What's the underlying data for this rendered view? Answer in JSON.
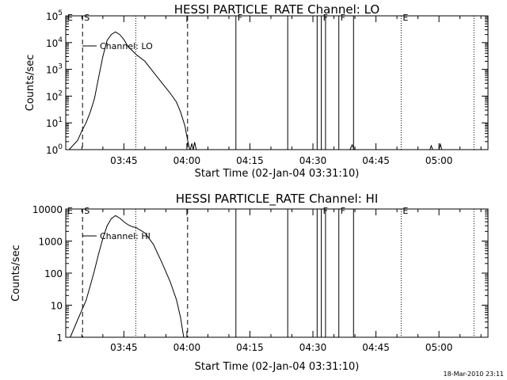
{
  "footer": {
    "timestamp": "18-Mar-2010 23:11"
  },
  "chart_data": [
    {
      "type": "line",
      "title": "HESSI PARTICLE_RATE Channel: LO",
      "xlabel": "Start Time (02-Jan-04 03:31:10)",
      "ylabel": "Counts/sec",
      "yscale": "log",
      "xlim": [
        "03:31:10",
        "05:11:40"
      ],
      "ylim": [
        1,
        100000
      ],
      "x_ticks": [
        "03:45",
        "04:00",
        "04:15",
        "04:30",
        "04:45",
        "05:00"
      ],
      "y_ticks": [
        {
          "value": 1,
          "base": "10",
          "exp": "0"
        },
        {
          "value": 10,
          "base": "10",
          "exp": "1"
        },
        {
          "value": 100,
          "base": "10",
          "exp": "2"
        },
        {
          "value": 1000,
          "base": "10",
          "exp": "3"
        },
        {
          "value": 10000,
          "base": "10",
          "exp": "4"
        },
        {
          "value": 100000,
          "base": "10",
          "exp": "5"
        }
      ],
      "legend": {
        "label": "Channel: LO",
        "placement": "top-left"
      },
      "series": [
        {
          "name": "Channel: LO",
          "segments": [
            [
              [
                "03:31:58",
                1.0
              ],
              [
                "03:34:00",
                2.2
              ],
              [
                "03:35:00",
                5
              ],
              [
                "03:36:00",
                10
              ],
              [
                "03:37:00",
                25
              ],
              [
                "03:38:00",
                80
              ],
              [
                "03:39:00",
                500
              ],
              [
                "03:40:00",
                3000
              ],
              [
                "03:41:00",
                12000
              ],
              [
                "03:42:00",
                20000
              ],
              [
                "03:43:00",
                25000
              ],
              [
                "03:44:00",
                20000
              ],
              [
                "03:45:00",
                13000
              ],
              [
                "03:46:00",
                7000
              ],
              [
                "03:47:00",
                5000
              ],
              [
                "03:48:00",
                3500
              ],
              [
                "03:50:00",
                2000
              ],
              [
                "03:52:00",
                800
              ],
              [
                "03:54:00",
                320
              ],
              [
                "03:56:00",
                130
              ],
              [
                "03:57:30",
                60
              ],
              [
                "03:58:30",
                25
              ],
              [
                "03:59:30",
                8
              ],
              [
                "04:00:15",
                2
              ],
              [
                "04:00:40",
                1.0
              ]
            ],
            [
              [
                "04:00:50",
                1.0
              ],
              [
                "04:01:10",
                1.7
              ],
              [
                "04:01:30",
                1.0
              ],
              [
                "04:01:50",
                1.9
              ],
              [
                "04:02:15",
                1.0
              ]
            ],
            [
              [
                "04:38:50",
                1.0
              ],
              [
                "04:39:20",
                1.5
              ],
              [
                "04:39:50",
                1.0
              ]
            ],
            [
              [
                "04:57:50",
                1.0
              ],
              [
                "04:58:10",
                1.4
              ],
              [
                "04:58:30",
                1.0
              ]
            ],
            [
              [
                "05:00:00",
                1.0
              ],
              [
                "05:00:20",
                1.6
              ],
              [
                "05:00:40",
                1.0
              ]
            ]
          ]
        }
      ],
      "flag_lines": [
        {
          "label": "E",
          "x": "03:31:10",
          "style": "solid"
        },
        {
          "label": "S",
          "x": "03:35:10",
          "style": "dashed"
        },
        {
          "label": "",
          "x": "03:47:50",
          "style": "dotted"
        },
        {
          "label": "",
          "x": "04:00:10",
          "style": "dashed"
        },
        {
          "label": "F",
          "x": "04:11:40",
          "style": "solid"
        },
        {
          "label": "",
          "x": "04:24:00",
          "style": "solid"
        },
        {
          "label": "",
          "x": "04:31:00",
          "style": "solid"
        },
        {
          "label": "F",
          "x": "04:32:00",
          "style": "solid"
        },
        {
          "label": "",
          "x": "04:33:00",
          "style": "solid"
        },
        {
          "label": "F",
          "x": "04:36:10",
          "style": "solid"
        },
        {
          "label": "",
          "x": "04:39:40",
          "style": "solid"
        },
        {
          "label": "E",
          "x": "04:51:00",
          "style": "dotted"
        },
        {
          "label": "",
          "x": "05:08:20",
          "style": "dotted"
        }
      ]
    },
    {
      "type": "line",
      "title": "HESSI PARTICLE_RATE Channel: HI",
      "xlabel": "Start Time (02-Jan-04 03:31:10)",
      "ylabel": "Counts/sec",
      "yscale": "log",
      "xlim": [
        "03:31:10",
        "05:11:40"
      ],
      "ylim": [
        1,
        10000
      ],
      "x_ticks": [
        "03:45",
        "04:00",
        "04:15",
        "04:30",
        "04:45",
        "05:00"
      ],
      "y_ticks": [
        {
          "value": 1,
          "label": "1"
        },
        {
          "value": 10,
          "label": "10"
        },
        {
          "value": 100,
          "label": "100"
        },
        {
          "value": 1000,
          "label": "1000"
        },
        {
          "value": 10000,
          "label": "10000"
        }
      ],
      "legend": {
        "label": "Channel: HI",
        "placement": "top-left"
      },
      "series": [
        {
          "name": "Channel: HI",
          "segments": [
            [
              [
                "03:32:15",
                1.0
              ],
              [
                "03:34:00",
                3.5
              ],
              [
                "03:35:00",
                7
              ],
              [
                "03:36:00",
                14
              ],
              [
                "03:37:00",
                40
              ],
              [
                "03:38:00",
                120
              ],
              [
                "03:39:00",
                400
              ],
              [
                "03:40:00",
                1200
              ],
              [
                "03:41:00",
                3000
              ],
              [
                "03:42:00",
                5000
              ],
              [
                "03:43:00",
                6200
              ],
              [
                "03:44:00",
                5200
              ],
              [
                "03:45:00",
                4000
              ],
              [
                "03:46:00",
                3200
              ],
              [
                "03:47:00",
                2800
              ],
              [
                "03:48:00",
                2600
              ],
              [
                "03:50:00",
                1800
              ],
              [
                "03:52:00",
                800
              ],
              [
                "03:54:00",
                220
              ],
              [
                "03:56:00",
                55
              ],
              [
                "03:57:30",
                15
              ],
              [
                "03:58:30",
                4
              ],
              [
                "03:59:15",
                1.0
              ]
            ]
          ]
        }
      ],
      "flag_lines": [
        {
          "label": "E",
          "x": "03:31:10",
          "style": "solid"
        },
        {
          "label": "S",
          "x": "03:35:10",
          "style": "dashed"
        },
        {
          "label": "",
          "x": "03:47:50",
          "style": "dotted"
        },
        {
          "label": "",
          "x": "04:00:10",
          "style": "dashed"
        },
        {
          "label": "",
          "x": "04:11:40",
          "style": "solid"
        },
        {
          "label": "",
          "x": "04:24:00",
          "style": "solid"
        },
        {
          "label": "",
          "x": "04:31:00",
          "style": "solid"
        },
        {
          "label": "F",
          "x": "04:32:00",
          "style": "solid"
        },
        {
          "label": "",
          "x": "04:33:00",
          "style": "solid"
        },
        {
          "label": "F",
          "x": "04:36:10",
          "style": "solid"
        },
        {
          "label": "",
          "x": "04:39:40",
          "style": "solid"
        },
        {
          "label": "E",
          "x": "04:51:00",
          "style": "dotted"
        },
        {
          "label": "",
          "x": "05:08:20",
          "style": "dotted"
        }
      ]
    }
  ]
}
